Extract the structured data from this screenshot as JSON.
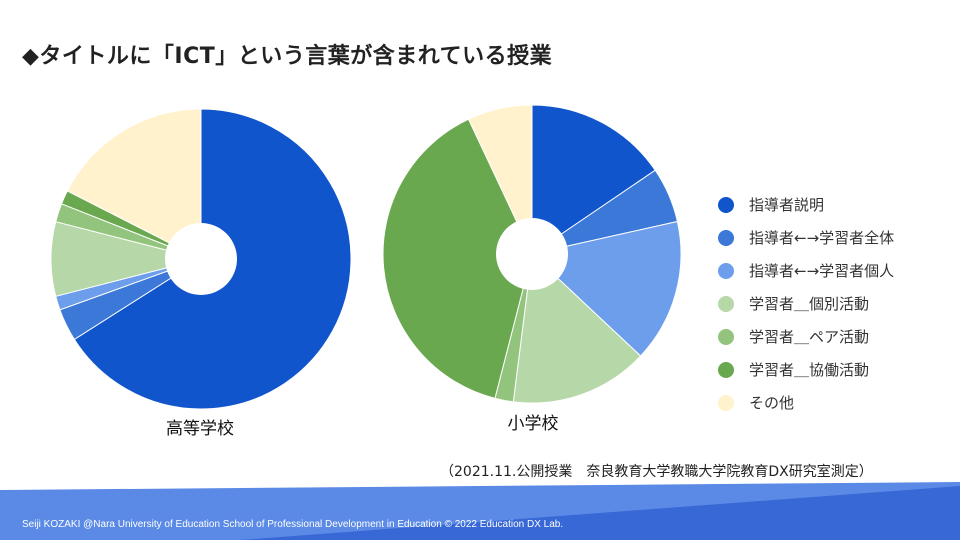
{
  "slide": {
    "title": "◆タイトルに「ICT」という言葉が含まれている授業",
    "source_note": "（2021.11.公開授業　奈良教育大学教職大学院教育DX研究室測定）",
    "footer": "Seiji KOZAKI @Nara University of Education School of Professional Development in Education  © 2022 Education DX Lab."
  },
  "colors": {
    "footer_dark": "#3867d6",
    "footer_light": "#5a8ae6"
  },
  "legend": [
    {
      "label": "指導者説明",
      "color": "#1155cc"
    },
    {
      "label": "指導者←→学習者全体",
      "color": "#3c78d8"
    },
    {
      "label": "指導者←→学習者個人",
      "color": "#6d9eeb"
    },
    {
      "label": "学習者＿個別活動",
      "color": "#b6d7a8"
    },
    {
      "label": "学習者＿ペア活動",
      "color": "#93c47d"
    },
    {
      "label": "学習者＿協働活動",
      "color": "#6aa84f"
    },
    {
      "label": "その他",
      "color": "#fff2cc"
    }
  ],
  "chart_data": [
    {
      "type": "pie",
      "title": "高等学校",
      "categories": [
        "指導者説明",
        "指導者←→学習者全体",
        "指導者←→学習者個人",
        "学習者＿個別活動",
        "学習者＿ペア活動",
        "学習者＿協働活動",
        "その他"
      ],
      "values": [
        66,
        3.5,
        1.5,
        8,
        2,
        1.5,
        17.5
      ],
      "colors": [
        "#1155cc",
        "#3c78d8",
        "#6d9eeb",
        "#b6d7a8",
        "#93c47d",
        "#6aa84f",
        "#fff2cc"
      ],
      "legend_position": "right"
    },
    {
      "type": "pie",
      "title": "小学校",
      "categories": [
        "指導者説明",
        "指導者←→学習者全体",
        "指導者←→学習者個人",
        "学習者＿個別活動",
        "学習者＿ペア活動",
        "学習者＿協働活動",
        "その他"
      ],
      "values": [
        15.5,
        6,
        15.5,
        15,
        2,
        39,
        7
      ],
      "colors": [
        "#1155cc",
        "#3c78d8",
        "#6d9eeb",
        "#b6d7a8",
        "#93c47d",
        "#6aa84f",
        "#fff2cc"
      ],
      "legend_position": "right"
    }
  ]
}
